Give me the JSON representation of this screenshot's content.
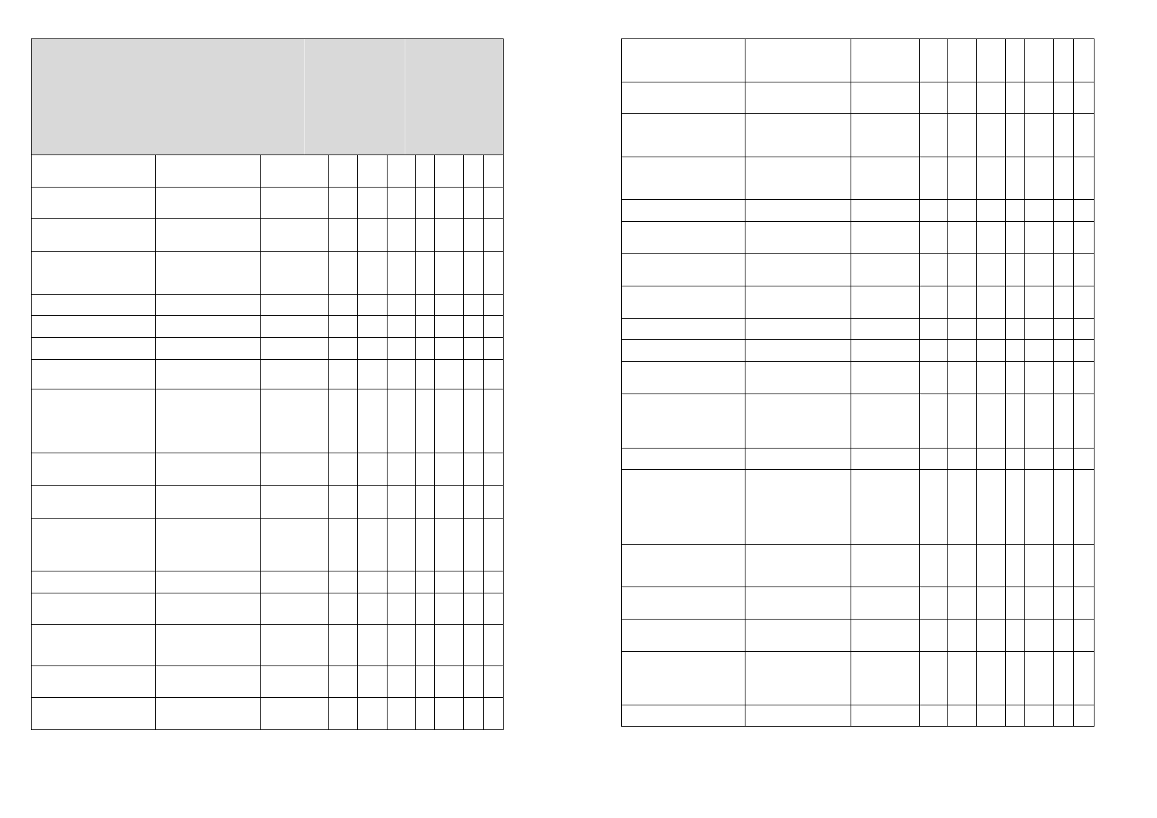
{
  "colors": {
    "header_fill": "#d9d9d9",
    "grid_line": "#000000",
    "background": "#ffffff"
  },
  "tables": [
    {
      "name": "left-table",
      "header_shaded": true,
      "columns": 10,
      "rows": 17,
      "cells_text": "empty"
    },
    {
      "name": "right-table",
      "header_shaded": false,
      "columns": 10,
      "rows": 18,
      "cells_text": "empty"
    }
  ]
}
